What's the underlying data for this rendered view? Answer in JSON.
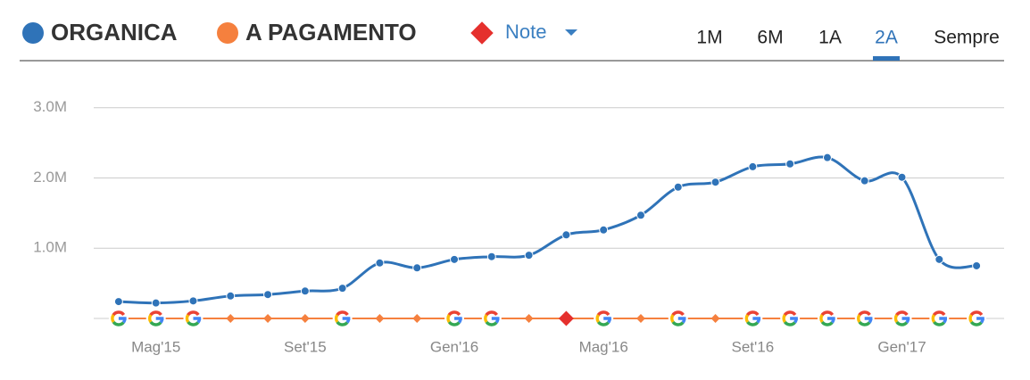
{
  "chart_data": {
    "type": "line",
    "legend": {
      "series_labels": [
        "ORGANICA",
        "A PAGAMENTO"
      ],
      "note_label": "Note",
      "note_color": "#e5302d"
    },
    "time_ranges": [
      "1M",
      "6M",
      "1A",
      "2A",
      "Sempre"
    ],
    "selected_range": "2A",
    "categories": [
      null,
      "Mag'15",
      null,
      null,
      null,
      "Set'15",
      null,
      null,
      null,
      "Gen'16",
      null,
      null,
      null,
      "Mag'16",
      null,
      null,
      null,
      "Set'16",
      null,
      null,
      null,
      "Gen'17",
      null,
      null
    ],
    "series": [
      {
        "name": "ORGANICA",
        "color": "#2f73b8",
        "values": [
          240000,
          220000,
          250000,
          320000,
          340000,
          390000,
          430000,
          790000,
          720000,
          840000,
          880000,
          900000,
          1190000,
          1260000,
          1470000,
          1870000,
          1940000,
          2160000,
          2200000,
          2290000,
          1960000,
          2010000,
          840000,
          750000
        ]
      },
      {
        "name": "A PAGAMENTO",
        "color": "#f5803e",
        "values": [
          0,
          0,
          0,
          0,
          0,
          0,
          0,
          0,
          0,
          0,
          0,
          0,
          0,
          0,
          0,
          0,
          0,
          0,
          0,
          0,
          0,
          0,
          0,
          0
        ]
      }
    ],
    "ylim": [
      0,
      3200000
    ],
    "yticks": [
      {
        "value": 1000000,
        "label": "1.0M"
      },
      {
        "value": 2000000,
        "label": "2.0M"
      },
      {
        "value": 3000000,
        "label": "3.0M"
      }
    ],
    "grid": true
  }
}
